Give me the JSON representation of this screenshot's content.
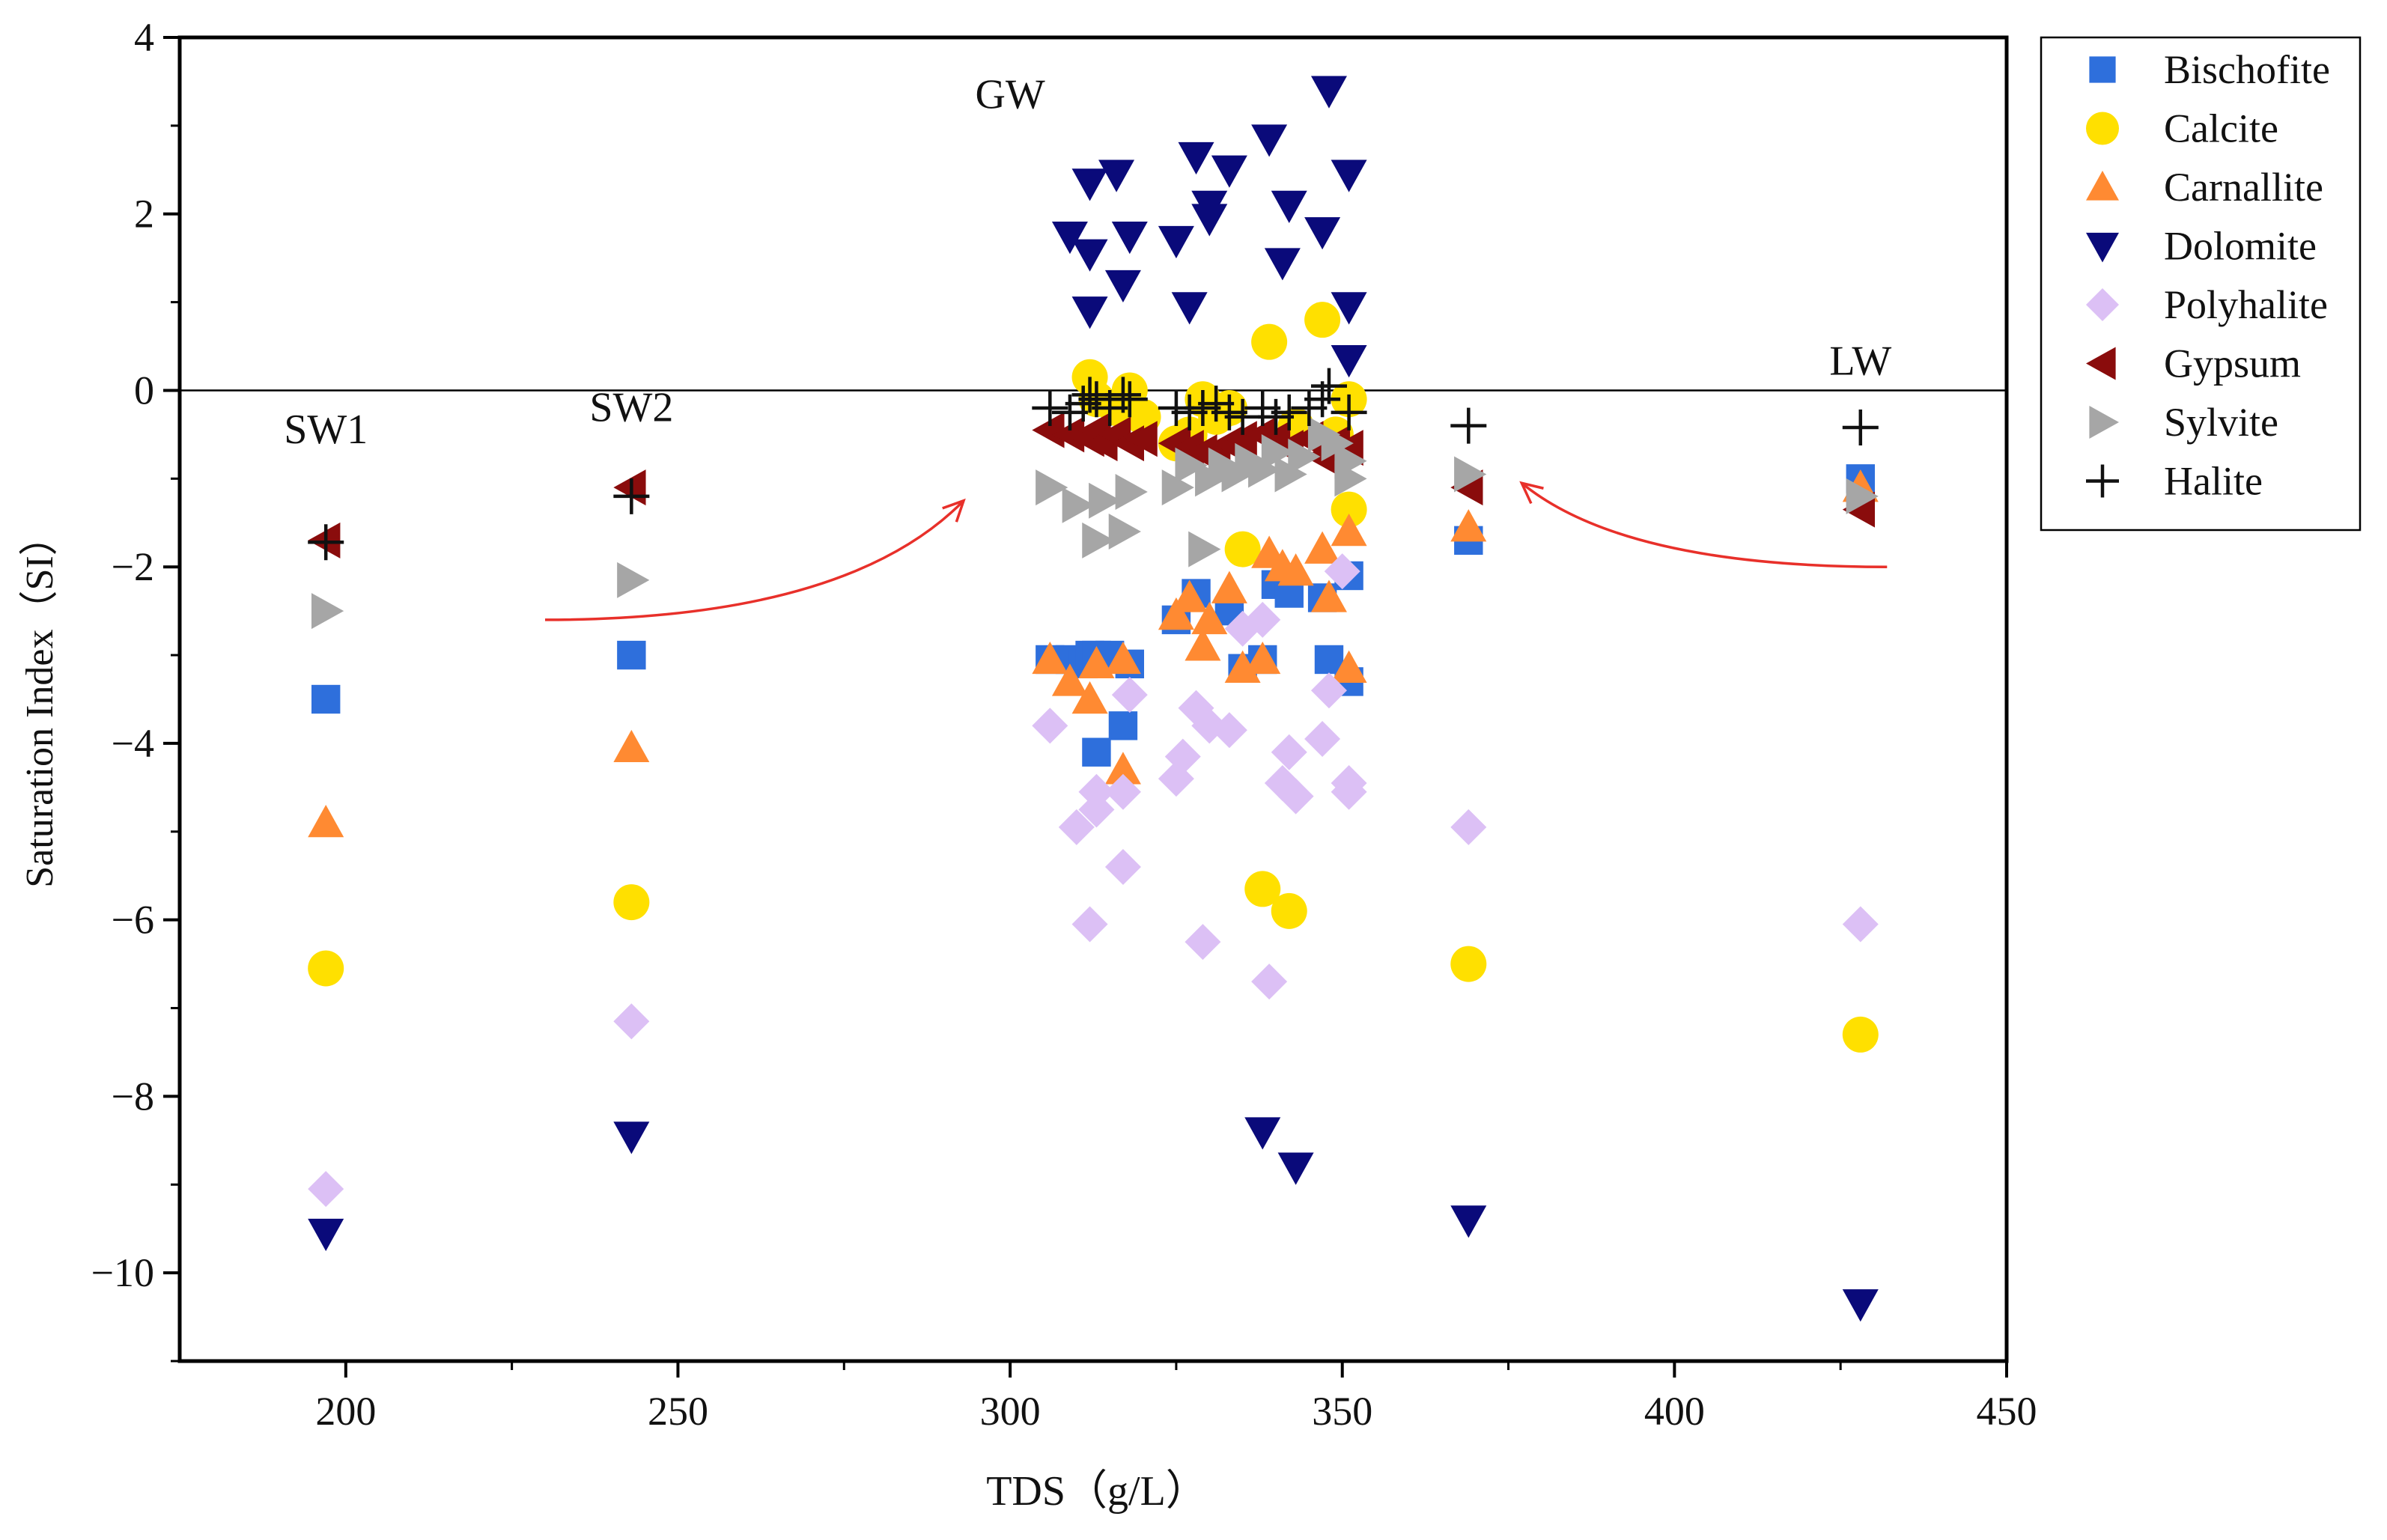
{
  "chart_data": {
    "type": "scatter",
    "title": "",
    "xlabel": "TDS（g/L）",
    "ylabel": "Saturation Index（SI）",
    "xlim": [
      175,
      450
    ],
    "ylim": [
      -11,
      4
    ],
    "x_ticks": [
      200,
      250,
      300,
      350,
      400,
      450
    ],
    "y_ticks": [
      4,
      2,
      0,
      -2,
      -4,
      -6,
      -8,
      -10
    ],
    "x_tick_labels": [
      "200",
      "250",
      "300",
      "350",
      "400",
      "450"
    ],
    "y_tick_labels": [
      "4",
      "2",
      "0",
      "−2",
      "−4",
      "−6",
      "−8",
      "−10"
    ],
    "reference_line_y": 0,
    "grid": false,
    "legend_position": "outside-right-top",
    "annotations": [
      {
        "text": "SW1",
        "x": 197,
        "y": -0.6
      },
      {
        "text": "SW2",
        "x": 243,
        "y": -0.35
      },
      {
        "text": "GW",
        "x": 300,
        "y": 3.2
      },
      {
        "text": "LW",
        "x": 428,
        "y": 0.18
      }
    ],
    "arrows": [
      {
        "from": [
          230,
          -2.6
        ],
        "to": [
          293,
          -1.25
        ]
      },
      {
        "from": [
          432,
          -2.0
        ],
        "to": [
          377,
          -1.05
        ]
      }
    ],
    "series": [
      {
        "name": "Bischofite",
        "marker": "square",
        "color": "#2e6fdc",
        "points": [
          [
            197,
            -3.5
          ],
          [
            243,
            -3.0
          ],
          [
            306,
            -3.05
          ],
          [
            309,
            -3.05
          ],
          [
            311,
            -3.1
          ],
          [
            312,
            -3.0
          ],
          [
            313,
            -3.0
          ],
          [
            313,
            -4.1
          ],
          [
            315,
            -3.0
          ],
          [
            317,
            -3.8
          ],
          [
            318,
            -3.1
          ],
          [
            325,
            -2.6
          ],
          [
            328,
            -2.3
          ],
          [
            333,
            -2.5
          ],
          [
            335,
            -3.15
          ],
          [
            338,
            -3.05
          ],
          [
            340,
            -2.2
          ],
          [
            342,
            -2.3
          ],
          [
            347,
            -2.35
          ],
          [
            348,
            -3.05
          ],
          [
            351,
            -2.1
          ],
          [
            351,
            -3.3
          ],
          [
            369,
            -1.7
          ],
          [
            428,
            -1.0
          ]
        ]
      },
      {
        "name": "Calcite",
        "marker": "circle",
        "color": "#ffe000",
        "points": [
          [
            197,
            -6.55
          ],
          [
            243,
            -5.8
          ],
          [
            312,
            0.15
          ],
          [
            313,
            -0.1
          ],
          [
            316,
            -0.2
          ],
          [
            318,
            0.0
          ],
          [
            320,
            -0.3
          ],
          [
            325,
            -0.6
          ],
          [
            327,
            -0.5
          ],
          [
            329,
            -0.1
          ],
          [
            331,
            -0.3
          ],
          [
            333,
            -0.2
          ],
          [
            335,
            -1.8
          ],
          [
            338,
            -5.65
          ],
          [
            339,
            0.55
          ],
          [
            342,
            -5.9
          ],
          [
            343,
            -0.4
          ],
          [
            347,
            0.8
          ],
          [
            349,
            -0.5
          ],
          [
            351,
            -1.35
          ],
          [
            351,
            -0.1
          ],
          [
            369,
            -6.5
          ],
          [
            428,
            -7.3
          ]
        ]
      },
      {
        "name": "Carnallite",
        "marker": "triangle-up",
        "color": "#ff8a32",
        "points": [
          [
            197,
            -4.9
          ],
          [
            243,
            -4.05
          ],
          [
            306,
            -3.05
          ],
          [
            309,
            -3.3
          ],
          [
            312,
            -3.5
          ],
          [
            313,
            -3.1
          ],
          [
            317,
            -4.3
          ],
          [
            317,
            -3.05
          ],
          [
            325,
            -2.55
          ],
          [
            327,
            -2.35
          ],
          [
            329,
            -2.9
          ],
          [
            330,
            -2.6
          ],
          [
            333,
            -2.25
          ],
          [
            335,
            -3.15
          ],
          [
            338,
            -3.05
          ],
          [
            339,
            -1.85
          ],
          [
            341,
            -2.0
          ],
          [
            343,
            -2.05
          ],
          [
            347,
            -1.8
          ],
          [
            348,
            -2.35
          ],
          [
            351,
            -1.6
          ],
          [
            351,
            -3.15
          ],
          [
            369,
            -1.55
          ],
          [
            428,
            -1.1
          ]
        ]
      },
      {
        "name": "Dolomite",
        "marker": "triangle-down",
        "color": "#0a0a7a",
        "points": [
          [
            197,
            -9.55
          ],
          [
            243,
            -8.45
          ],
          [
            309,
            1.75
          ],
          [
            312,
            2.35
          ],
          [
            312,
            1.55
          ],
          [
            312,
            0.9
          ],
          [
            316,
            2.45
          ],
          [
            317,
            1.2
          ],
          [
            318,
            1.75
          ],
          [
            325,
            1.7
          ],
          [
            327,
            0.95
          ],
          [
            328,
            2.65
          ],
          [
            330,
            1.95
          ],
          [
            330,
            2.1
          ],
          [
            333,
            2.5
          ],
          [
            338,
            -8.4
          ],
          [
            339,
            2.85
          ],
          [
            341,
            1.45
          ],
          [
            342,
            2.1
          ],
          [
            343,
            -8.8
          ],
          [
            347,
            1.8
          ],
          [
            348,
            3.4
          ],
          [
            351,
            2.45
          ],
          [
            351,
            0.95
          ],
          [
            351,
            0.35
          ],
          [
            369,
            -9.4
          ],
          [
            428,
            -10.35
          ]
        ]
      },
      {
        "name": "Polyhalite",
        "marker": "diamond",
        "color": "#dcc0f5",
        "points": [
          [
            197,
            -9.05
          ],
          [
            243,
            -7.15
          ],
          [
            306,
            -3.8
          ],
          [
            310,
            -4.95
          ],
          [
            312,
            -6.05
          ],
          [
            313,
            -4.55
          ],
          [
            313,
            -4.75
          ],
          [
            317,
            -4.55
          ],
          [
            317,
            -5.4
          ],
          [
            318,
            -3.45
          ],
          [
            325,
            -4.4
          ],
          [
            326,
            -4.15
          ],
          [
            328,
            -3.6
          ],
          [
            329,
            -6.25
          ],
          [
            330,
            -3.8
          ],
          [
            333,
            -3.85
          ],
          [
            335,
            -2.7
          ],
          [
            338,
            -2.6
          ],
          [
            339,
            -6.7
          ],
          [
            341,
            -4.45
          ],
          [
            342,
            -4.1
          ],
          [
            343,
            -4.6
          ],
          [
            347,
            -3.95
          ],
          [
            348,
            -3.4
          ],
          [
            350,
            -2.05
          ],
          [
            351,
            -4.45
          ],
          [
            351,
            -4.55
          ],
          [
            369,
            -4.95
          ],
          [
            428,
            -6.05
          ]
        ]
      },
      {
        "name": "Gypsum",
        "marker": "triangle-left",
        "color": "#8a0c0c",
        "points": [
          [
            197,
            -1.7
          ],
          [
            243,
            -1.1
          ],
          [
            306,
            -0.45
          ],
          [
            309,
            -0.5
          ],
          [
            312,
            -0.55
          ],
          [
            313,
            -0.45
          ],
          [
            314,
            -0.6
          ],
          [
            316,
            -0.5
          ],
          [
            318,
            -0.6
          ],
          [
            320,
            -0.55
          ],
          [
            325,
            -0.6
          ],
          [
            327,
            -0.65
          ],
          [
            329,
            -0.7
          ],
          [
            331,
            -0.75
          ],
          [
            333,
            -0.6
          ],
          [
            335,
            -0.55
          ],
          [
            338,
            -0.5
          ],
          [
            340,
            -0.55
          ],
          [
            342,
            -0.65
          ],
          [
            345,
            -0.55
          ],
          [
            347,
            -0.75
          ],
          [
            349,
            -0.6
          ],
          [
            351,
            -0.65
          ],
          [
            369,
            -1.1
          ],
          [
            428,
            -1.35
          ]
        ]
      },
      {
        "name": "Sylvite",
        "marker": "triangle-right",
        "color": "#a6a6a6",
        "points": [
          [
            197,
            -2.5
          ],
          [
            243,
            -2.15
          ],
          [
            306,
            -1.1
          ],
          [
            310,
            -1.3
          ],
          [
            313,
            -1.7
          ],
          [
            314,
            -1.25
          ],
          [
            317,
            -1.6
          ],
          [
            318,
            -1.15
          ],
          [
            325,
            -1.1
          ],
          [
            327,
            -0.85
          ],
          [
            329,
            -1.8
          ],
          [
            330,
            -1.0
          ],
          [
            332,
            -0.85
          ],
          [
            334,
            -0.95
          ],
          [
            336,
            -0.8
          ],
          [
            338,
            -0.9
          ],
          [
            340,
            -0.7
          ],
          [
            342,
            -0.95
          ],
          [
            344,
            -0.75
          ],
          [
            347,
            -0.5
          ],
          [
            349,
            -0.6
          ],
          [
            351,
            -0.8
          ],
          [
            351,
            -1.0
          ],
          [
            369,
            -0.95
          ],
          [
            428,
            -1.2
          ]
        ]
      },
      {
        "name": "Halite",
        "marker": "plus",
        "color": "#111111",
        "points": [
          [
            197,
            -1.72
          ],
          [
            243,
            -1.2
          ],
          [
            306,
            -0.2
          ],
          [
            309,
            -0.25
          ],
          [
            311,
            -0.15
          ],
          [
            312,
            -0.05
          ],
          [
            313,
            -0.1
          ],
          [
            315,
            -0.2
          ],
          [
            317,
            -0.05
          ],
          [
            318,
            -0.1
          ],
          [
            325,
            -0.2
          ],
          [
            327,
            -0.25
          ],
          [
            329,
            -0.2
          ],
          [
            331,
            -0.15
          ],
          [
            333,
            -0.25
          ],
          [
            335,
            -0.3
          ],
          [
            338,
            -0.2
          ],
          [
            340,
            -0.3
          ],
          [
            342,
            -0.25
          ],
          [
            345,
            -0.2
          ],
          [
            347,
            -0.1
          ],
          [
            348,
            0.05
          ],
          [
            351,
            -0.25
          ],
          [
            369,
            -0.4
          ],
          [
            428,
            -0.42
          ]
        ]
      }
    ]
  }
}
